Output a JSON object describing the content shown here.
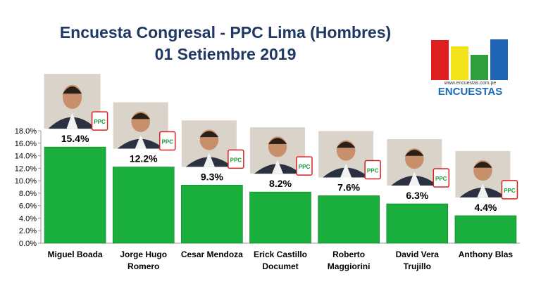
{
  "header": {
    "title_line1": "Encuesta Congresal - PPC Lima (Hombres)",
    "title_line2": "01 Setiembre 2019"
  },
  "logo": {
    "url": "www.encuestas.com.pe",
    "word": "ENCUESTAS",
    "bar_colors": [
      "#e02020",
      "#f2e21a",
      "#2e9e3e",
      "#1f63b5"
    ]
  },
  "colors": {
    "bar": "#1aae3c",
    "bar_edge": "#0f7a28",
    "axis_text": "#000000",
    "photo_bg": "#d9d3ca",
    "ppc_red": "#d62020",
    "ppc_green": "#1a9a3a"
  },
  "badge_text": "PPC",
  "chart_data": {
    "type": "bar",
    "title": "Encuesta Congresal - PPC Lima (Hombres)",
    "subtitle": "01 Setiembre 2019",
    "categories": [
      [
        "Miguel Boada"
      ],
      [
        "Jorge Hugo",
        "Romero"
      ],
      [
        "Cesar Mendoza"
      ],
      [
        "Erick Castillo",
        "Documet"
      ],
      [
        "Roberto",
        "Maggiorini"
      ],
      [
        "David Vera",
        "Trujillo"
      ],
      [
        "Anthony Blas"
      ]
    ],
    "values": [
      15.4,
      12.2,
      9.3,
      8.2,
      7.6,
      6.3,
      4.4
    ],
    "value_labels": [
      "15.4%",
      "12.2%",
      "9.3%",
      "8.2%",
      "7.6%",
      "6.3%",
      "4.4%"
    ],
    "ylim": [
      0,
      18
    ],
    "yticks": [
      "0.0%",
      "2.0%",
      "4.0%",
      "6.0%",
      "8.0%",
      "10.0%",
      "12.0%",
      "14.0%",
      "16.0%",
      "18.0%"
    ],
    "grid": false,
    "legend": "none"
  }
}
